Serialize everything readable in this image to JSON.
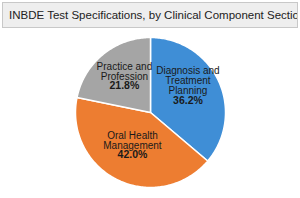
{
  "chart_data": {
    "type": "pie",
    "title": "INBDE Test Specifications, by Clinical Component Section",
    "categories": [
      "Diagnosis and Treatment Planning",
      "Oral Health Management",
      "Practice and Profession"
    ],
    "values": [
      36.2,
      42.0,
      21.8
    ],
    "value_labels": [
      "36.2%",
      "42.0%",
      "21.8%"
    ],
    "colors": [
      "#3f8ed6",
      "#ed7d31",
      "#a5a5a5"
    ],
    "data_labels": true
  }
}
